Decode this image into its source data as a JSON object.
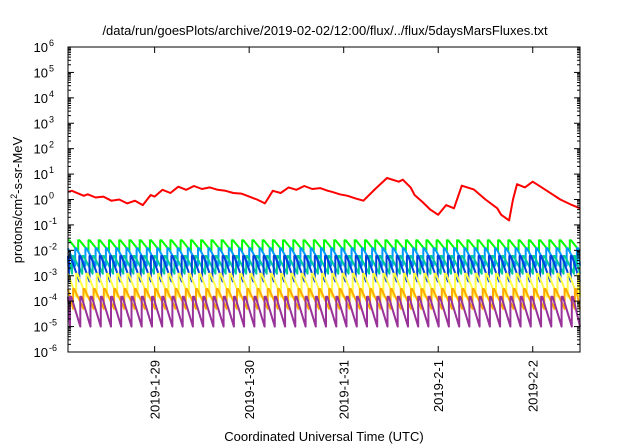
{
  "chart_data": {
    "type": "line",
    "title": "/data/run/goesPlots/archive/2019-02-02/12:00/flux/../flux/5daysMarsFluxes.txt",
    "xlabel": "Coordinated Universal Time (UTC)",
    "ylabel": "protons/cm²-s-sr-MeV",
    "ylabel_parts": {
      "pre": "protons/cm",
      "sup": "2",
      "post": "-s-sr-MeV"
    },
    "yscale": "log",
    "ylim": [
      1e-06,
      1000000.0
    ],
    "y_ticks": [
      {
        "base": "10",
        "exp": "-6"
      },
      {
        "base": "10",
        "exp": "-5"
      },
      {
        "base": "10",
        "exp": "-4"
      },
      {
        "base": "10",
        "exp": "-3"
      },
      {
        "base": "10",
        "exp": "-2"
      },
      {
        "base": "10",
        "exp": "-1"
      },
      {
        "base": "10",
        "exp": "0"
      },
      {
        "base": "10",
        "exp": "1"
      },
      {
        "base": "10",
        "exp": "2"
      },
      {
        "base": "10",
        "exp": "3"
      },
      {
        "base": "10",
        "exp": "4"
      },
      {
        "base": "10",
        "exp": "5"
      },
      {
        "base": "10",
        "exp": "6"
      }
    ],
    "xlim": [
      "2019-01-28 02:00",
      "2019-02-02 12:00"
    ],
    "x_ticks": [
      "2019-1-29",
      "2019-1-30",
      "2019-1-31",
      "2019-2-1",
      "2019-2-2"
    ],
    "grid": false,
    "series": [
      {
        "color": "#ff0000",
        "x": [
          "2019-01-28 02:00",
          "2019-01-28 03:00",
          "2019-01-28 06:00",
          "2019-01-28 07:00",
          "2019-01-28 09:00",
          "2019-01-28 11:00",
          "2019-01-28 13:00",
          "2019-01-28 15:00",
          "2019-01-28 17:00",
          "2019-01-28 19:00",
          "2019-01-28 21:00",
          "2019-01-28 23:00",
          "2019-01-29 00:00",
          "2019-01-29 02:00",
          "2019-01-29 04:00",
          "2019-01-29 06:00",
          "2019-01-29 08:00",
          "2019-01-29 10:00",
          "2019-01-29 12:00",
          "2019-01-29 14:00",
          "2019-01-29 16:00",
          "2019-01-29 18:00",
          "2019-01-29 20:00",
          "2019-01-29 22:00",
          "2019-01-30 00:00",
          "2019-01-30 02:00",
          "2019-01-30 04:00",
          "2019-01-30 06:00",
          "2019-01-30 08:00",
          "2019-01-30 10:00",
          "2019-01-30 12:00",
          "2019-01-30 14:00",
          "2019-01-30 16:00",
          "2019-01-30 18:00",
          "2019-01-30 20:00",
          "2019-01-30 21:00",
          "2019-01-30 23:00",
          "2019-01-31 01:00",
          "2019-01-31 03:00",
          "2019-01-31 05:00",
          "2019-01-31 08:00",
          "2019-01-31 11:00",
          "2019-01-31 14:00",
          "2019-01-31 15:00",
          "2019-01-31 17:00",
          "2019-01-31 18:00",
          "2019-01-31 20:00",
          "2019-01-31 22:00",
          "2019-02-01 00:00",
          "2019-02-01 02:00",
          "2019-02-01 04:00",
          "2019-02-01 06:00",
          "2019-02-01 09:00",
          "2019-02-01 12:00",
          "2019-02-01 15:00",
          "2019-02-01 16:00",
          "2019-02-01 18:00",
          "2019-02-01 19:00",
          "2019-02-01 20:00",
          "2019-02-01 22:00",
          "2019-02-02 00:00",
          "2019-02-02 01:00",
          "2019-02-02 04:00",
          "2019-02-02 07:00",
          "2019-02-02 10:00",
          "2019-02-02 12:00"
        ],
        "y": [
          2.0,
          2.2,
          1.4,
          1.6,
          1.2,
          1.3,
          0.9,
          1.0,
          0.7,
          0.9,
          0.6,
          1.5,
          1.3,
          2.4,
          1.8,
          3.2,
          2.4,
          3.4,
          2.6,
          3.0,
          2.4,
          2.2,
          1.8,
          1.7,
          1.3,
          1.0,
          0.7,
          2.2,
          1.8,
          3.0,
          2.4,
          3.4,
          2.6,
          2.8,
          2.2,
          2.0,
          1.6,
          1.4,
          1.1,
          0.9,
          2.6,
          7.0,
          5.0,
          6.0,
          3.0,
          1.5,
          0.8,
          0.4,
          0.25,
          0.6,
          0.45,
          3.5,
          2.5,
          1.0,
          0.45,
          0.25,
          0.15,
          1.0,
          4.0,
          3.0,
          5.0,
          4.0,
          2.0,
          1.0,
          0.6,
          0.45
        ]
      },
      {
        "color": "#00ff00",
        "period_hours": 2.6,
        "peak": 0.025,
        "trough": 0.009,
        "phase": 0.0
      },
      {
        "color": "#0099ff",
        "period_hours": 2.6,
        "peak": 0.012,
        "trough": 0.0025,
        "phase": 0.3
      },
      {
        "color": "#00cc99",
        "period_hours": 2.6,
        "peak": 0.006,
        "trough": 0.0012,
        "phase": 0.6
      },
      {
        "color": "#0044dd",
        "period_hours": 2.6,
        "peak": 0.006,
        "trough": 0.0006,
        "phase": 0.9
      },
      {
        "color": "#ffff44",
        "period_hours": 2.6,
        "peak": 0.0012,
        "trough": 0.00015,
        "phase": 0.2
      },
      {
        "color": "#ffaa00",
        "period_hours": 2.6,
        "peak": 0.0003,
        "trough": 5e-05,
        "phase": 0.5
      },
      {
        "color": "#993399",
        "period_hours": 2.6,
        "peak": 0.00015,
        "trough": 1e-05,
        "phase": 0.8
      }
    ]
  }
}
